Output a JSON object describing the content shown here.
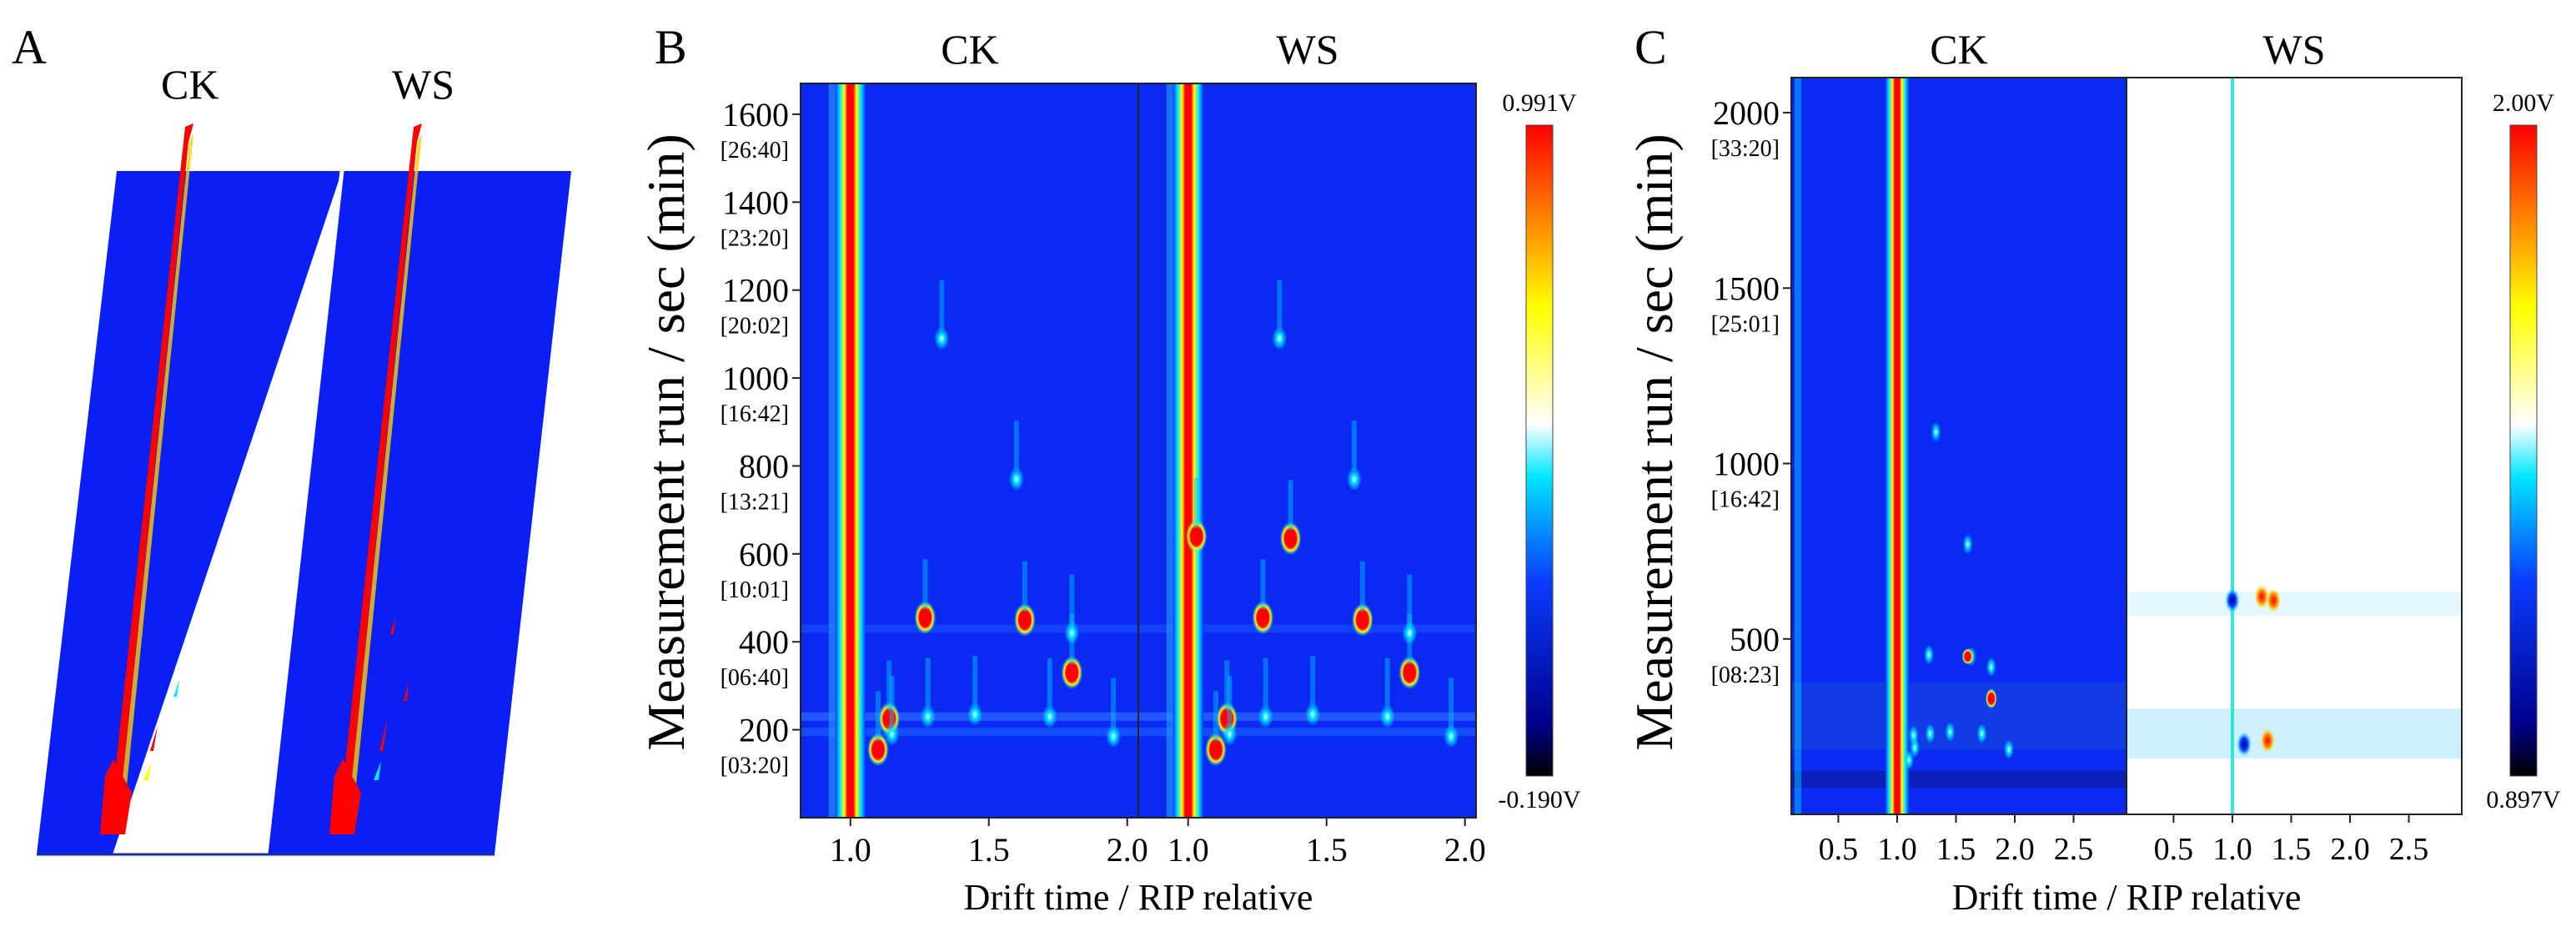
{
  "figure": {
    "panel_a": {
      "letter": "A",
      "labels": [
        "CK",
        "WS"
      ]
    },
    "panel_b": {
      "letter": "B",
      "samples": [
        "CK",
        "WS"
      ],
      "ylabel": "Measurement run / sec (min)",
      "xlabel": "Drift time / RIP relative",
      "y_ticks": [
        {
          "value": "1600",
          "time": "[26:40]"
        },
        {
          "value": "1400",
          "time": "[23:20]"
        },
        {
          "value": "1200",
          "time": "[20:02]"
        },
        {
          "value": "1000",
          "time": "[16:42]"
        },
        {
          "value": "800",
          "time": "[13:21]"
        },
        {
          "value": "600",
          "time": "[10:01]"
        },
        {
          "value": "400",
          "time": "[06:40]"
        },
        {
          "value": "200",
          "time": "[03:20]"
        }
      ],
      "x_ticks": [
        "1.0",
        "1.5",
        "2.0"
      ],
      "colorbar": {
        "max": "0.991V",
        "min": "-0.190V"
      }
    },
    "panel_c": {
      "letter": "C",
      "samples": [
        "CK",
        "WS"
      ],
      "ylabel": "Measurement run / sec (min)",
      "xlabel": "Drift time / RIP relative",
      "y_ticks": [
        {
          "value": "2000",
          "time": "[33:20]"
        },
        {
          "value": "1500",
          "time": "[25:01]"
        },
        {
          "value": "1000",
          "time": "[16:42]"
        },
        {
          "value": "500",
          "time": "[08:23]"
        }
      ],
      "x_ticks": [
        "0.5",
        "1.0",
        "1.5",
        "2.0",
        "2.5"
      ],
      "colorbar": {
        "max": "2.00V",
        "min": "0.897V"
      }
    }
  },
  "chart_data": [
    {
      "type": "surface",
      "panel": "A",
      "series": [
        {
          "name": "CK"
        },
        {
          "name": "WS"
        }
      ]
    },
    {
      "type": "heatmap",
      "panel": "B",
      "facets": [
        "CK",
        "WS"
      ],
      "xlabel": "Drift time / RIP relative",
      "ylabel": "Measurement run / sec (min)",
      "xlim": [
        0.82,
        2.04
      ],
      "ylim": [
        0,
        1670
      ],
      "colorscale": [
        "#000000",
        "#0000c8",
        "#0a3cff",
        "#00e6ff",
        "#ffffff",
        "#ffff00",
        "#ff0000"
      ],
      "colorbar_range_V": [
        -0.19,
        0.991
      ],
      "ridge_drift": 1.0,
      "peaks": [
        {
          "x": 1.03,
          "y": 640,
          "ws_only": true
        },
        {
          "x": 1.27,
          "y": 455
        },
        {
          "x": 1.33,
          "y": 1090
        },
        {
          "x": 1.37,
          "y": 635,
          "ws_only": true
        },
        {
          "x": 1.6,
          "y": 770
        },
        {
          "x": 1.63,
          "y": 450
        },
        {
          "x": 1.8,
          "y": 330
        },
        {
          "x": 1.8,
          "y": 420
        },
        {
          "x": 1.14,
          "y": 225
        },
        {
          "x": 1.28,
          "y": 230
        },
        {
          "x": 1.45,
          "y": 235
        },
        {
          "x": 1.72,
          "y": 230
        },
        {
          "x": 1.95,
          "y": 185
        },
        {
          "x": 1.1,
          "y": 155
        },
        {
          "x": 1.15,
          "y": 190
        }
      ]
    },
    {
      "type": "heatmap",
      "panel": "C",
      "facets": [
        "CK",
        "WS"
      ],
      "xlabel": "Drift time / RIP relative",
      "ylabel": "Measurement run / sec (min)",
      "xlim": [
        0.1,
        2.95
      ],
      "ylim": [
        0,
        2100
      ],
      "colorscale": [
        "#000000",
        "#0000c8",
        "#0a3cff",
        "#00e6ff",
        "#ffffff",
        "#ffff00",
        "#ff0000"
      ],
      "colorbar_range_V": [
        0.897,
        2.0
      ],
      "ridge_drift": 1.0,
      "ws_difference_spots": [
        {
          "x": 1.0,
          "y": 610,
          "sign": "negative"
        },
        {
          "x": 1.25,
          "y": 620,
          "sign": "positive"
        },
        {
          "x": 1.35,
          "y": 610,
          "sign": "positive"
        },
        {
          "x": 1.1,
          "y": 200,
          "sign": "negative"
        },
        {
          "x": 1.3,
          "y": 210,
          "sign": "positive"
        }
      ]
    }
  ]
}
